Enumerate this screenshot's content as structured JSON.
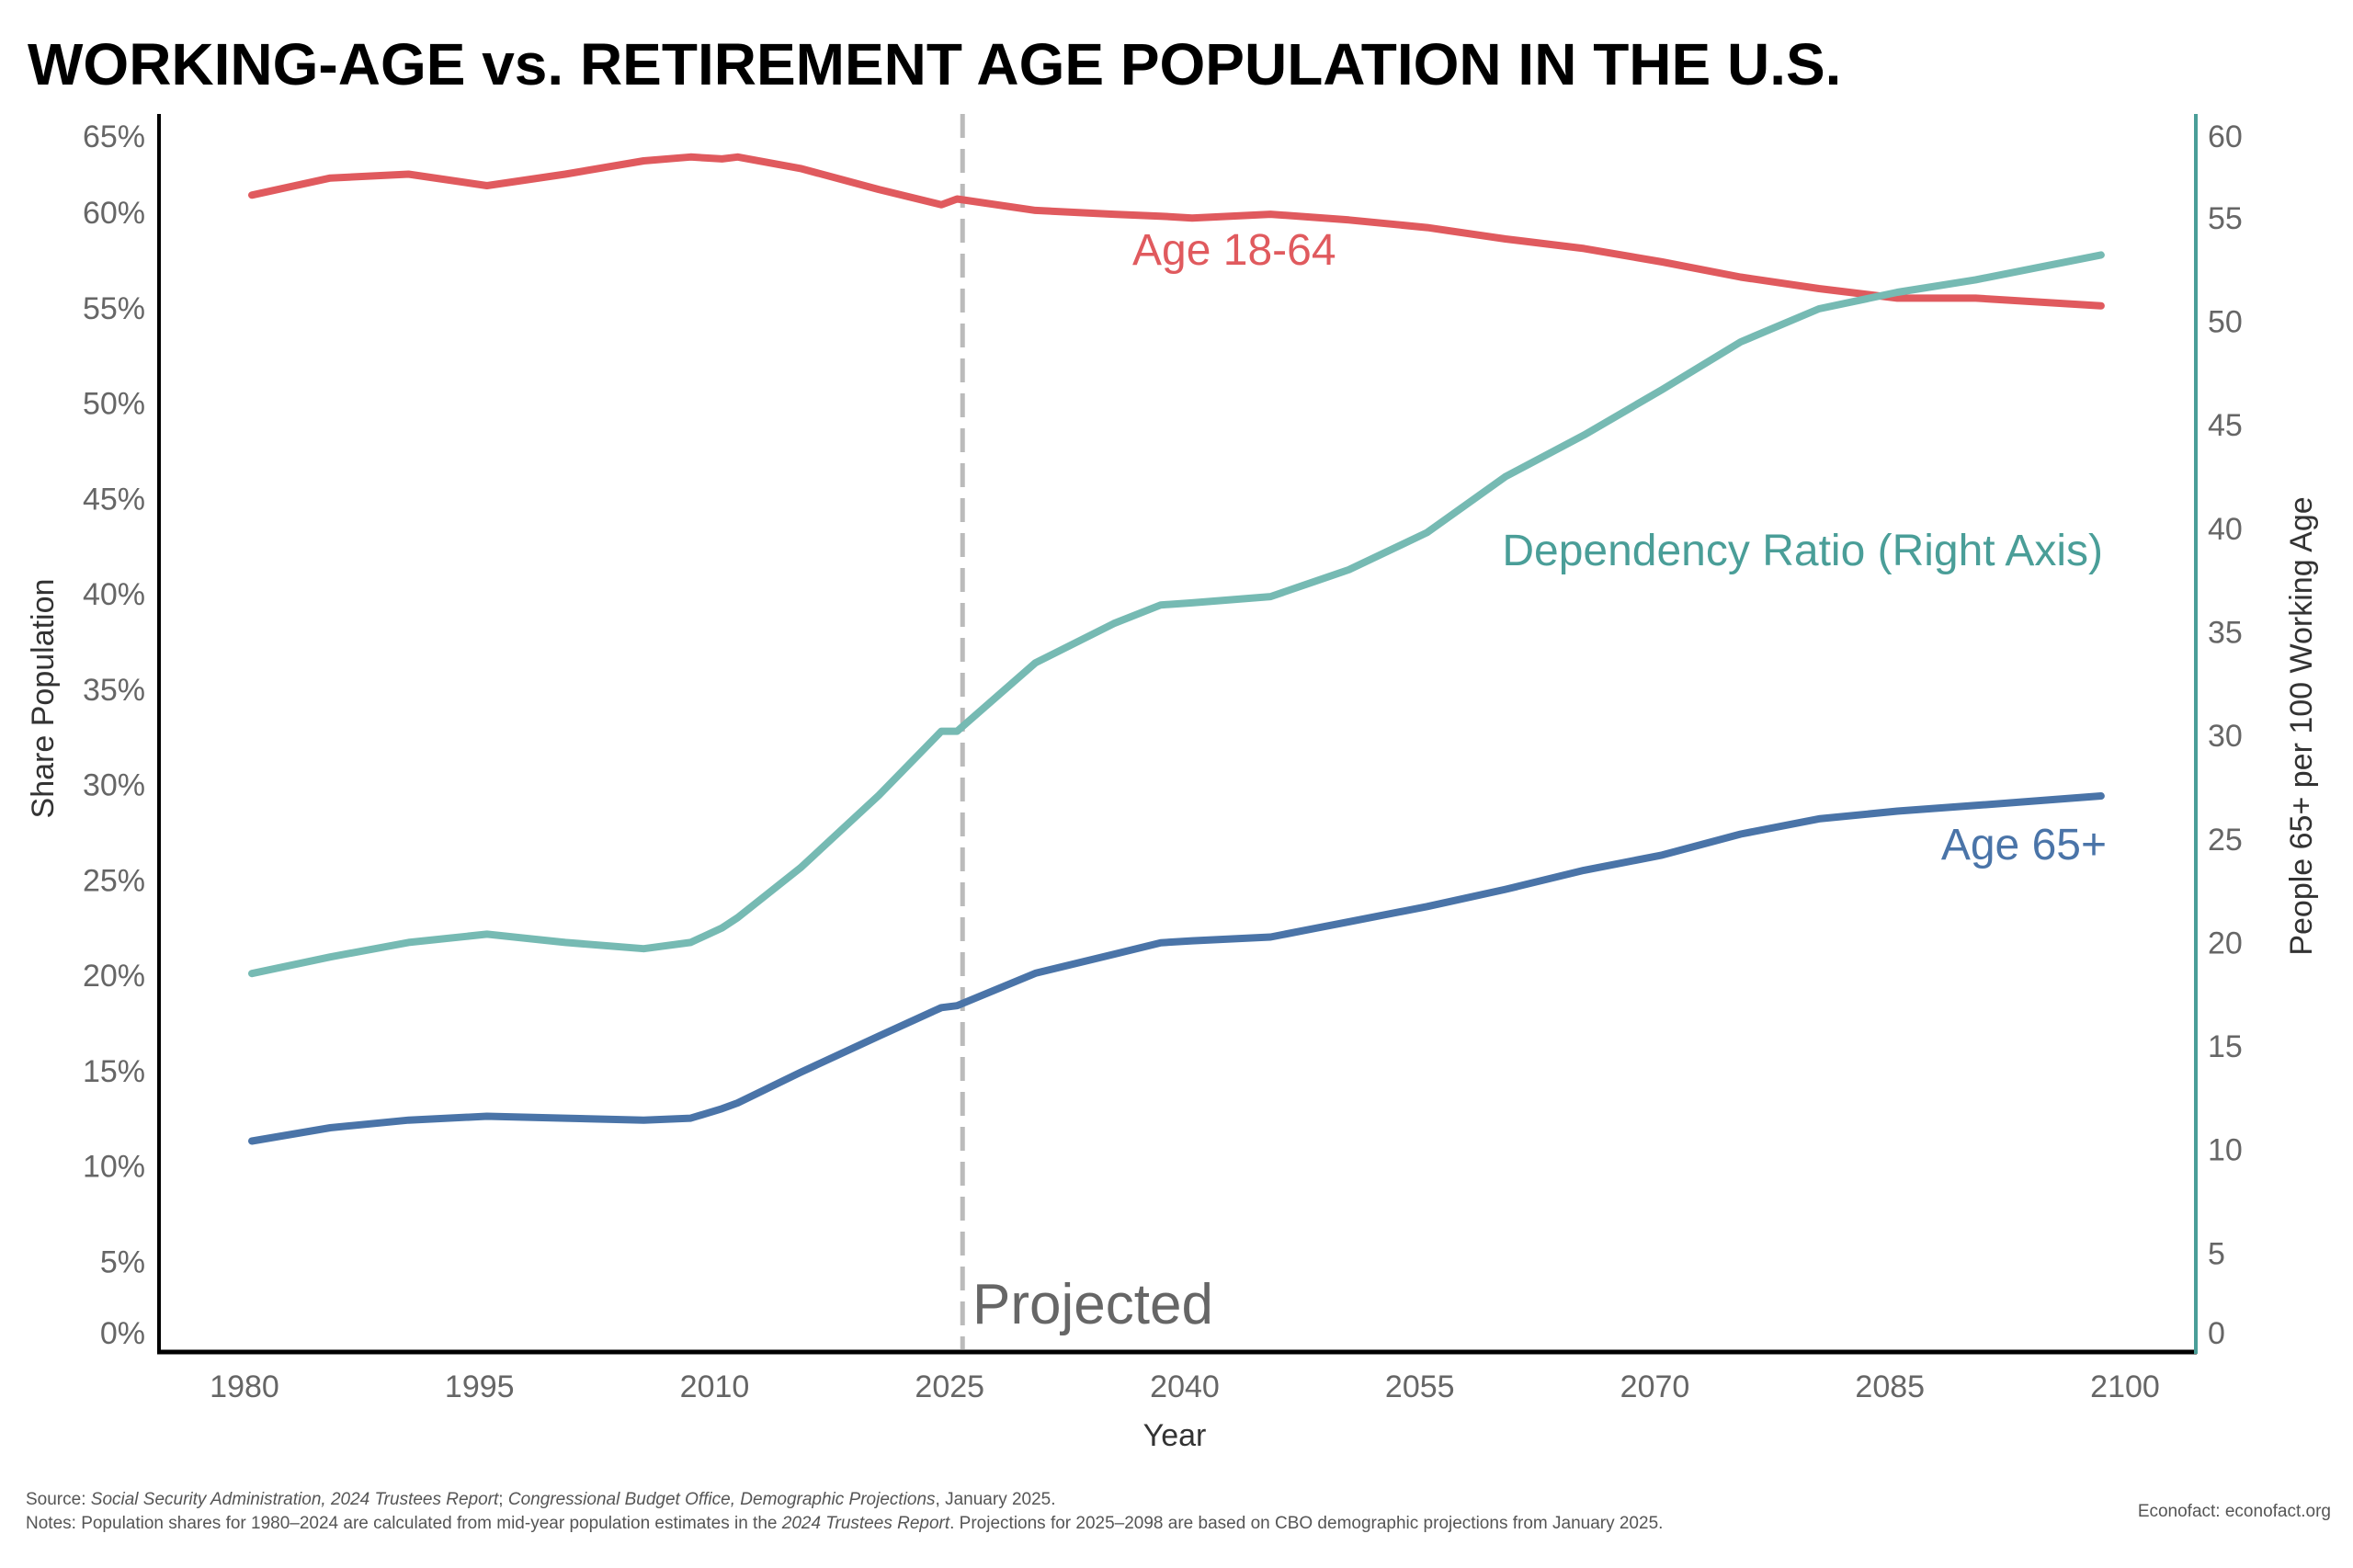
{
  "chart_data": {
    "type": "line",
    "title": "WORKING-AGE vs. RETIREMENT AGE POPULATION IN THE U.S.",
    "xlabel": "Year",
    "ylabel": "Share Population",
    "y2label": "People 65+ per 100 Working Age",
    "xlim": [
      1976,
      2102
    ],
    "ylim": [
      0,
      66
    ],
    "y2lim": [
      0,
      60
    ],
    "xticks": [
      1980,
      1995,
      2010,
      2025,
      2040,
      2055,
      2070,
      2085,
      2100
    ],
    "yticks": [
      "0%",
      "5%",
      "10%",
      "15%",
      "20%",
      "25%",
      "30%",
      "35%",
      "40%",
      "45%",
      "50%",
      "55%",
      "60%",
      "65%"
    ],
    "y2ticks": [
      0,
      5,
      10,
      15,
      20,
      25,
      30,
      35,
      40,
      45,
      50,
      55,
      60
    ],
    "grid": false,
    "projection_marker": {
      "x": 2025,
      "label": "Projected"
    },
    "x": [
      1980,
      1985,
      1990,
      1995,
      2000,
      2005,
      2008,
      2010,
      2011,
      2015,
      2020,
      2024,
      2025,
      2030,
      2035,
      2038,
      2040,
      2045,
      2050,
      2055,
      2060,
      2065,
      2070,
      2075,
      2080,
      2085,
      2090,
      2098
    ],
    "series": [
      {
        "name": "Age 18-64",
        "axis": "left",
        "color": "#e05a5e",
        "values": [
          60.9,
          61.8,
          62.0,
          61.4,
          62.0,
          62.7,
          62.9,
          62.8,
          62.9,
          62.3,
          61.2,
          60.4,
          60.7,
          60.1,
          59.9,
          59.8,
          59.7,
          59.9,
          59.6,
          59.2,
          58.6,
          58.1,
          57.4,
          56.6,
          56.0,
          55.5,
          55.5,
          55.1
        ]
      },
      {
        "name": "Age 65+",
        "axis": "left",
        "color": "#4a74a8",
        "values": [
          11.3,
          12.0,
          12.4,
          12.6,
          12.5,
          12.4,
          12.5,
          13.0,
          13.3,
          14.9,
          16.8,
          18.3,
          18.4,
          20.1,
          21.1,
          21.7,
          21.8,
          22.0,
          22.8,
          23.6,
          24.5,
          25.5,
          26.3,
          27.4,
          28.2,
          28.6,
          28.9,
          29.4
        ]
      },
      {
        "name": "Dependency Ratio (Right Axis)",
        "axis": "right",
        "color": "#76bab3",
        "values": [
          18.5,
          19.3,
          20.0,
          20.4,
          20.0,
          19.7,
          20.0,
          20.7,
          21.2,
          23.6,
          27.1,
          30.2,
          30.2,
          33.5,
          35.4,
          36.3,
          36.4,
          36.7,
          38.0,
          39.8,
          42.5,
          44.5,
          46.7,
          49.0,
          50.6,
          51.4,
          52.0,
          53.2
        ]
      }
    ],
    "label_colors": {
      "age_18_64": "#e05a5e",
      "age_65": "#4a74a8",
      "ratio": "#4a9e98",
      "right_axis": "#4a9e98"
    }
  },
  "footer": {
    "source_prefix": "Source: ",
    "source_1": "Social Security Administration, 2024 Trustees Report",
    "source_sep": "; ",
    "source_2": "Congressional Budget Office, Demographic Projections",
    "source_suffix": ", January 2025.",
    "notes_prefix": "Notes: Population shares for 1980–2024 are calculated from mid-year population estimates in the ",
    "notes_italic": "2024 Trustees Report",
    "notes_suffix": ". Projections for 2025–2098 are based on CBO demographic projections from January 2025.",
    "credit": "Econofact: econofact.org"
  }
}
